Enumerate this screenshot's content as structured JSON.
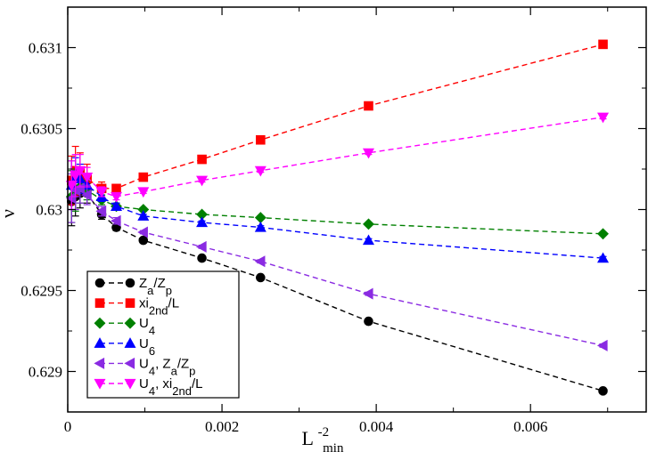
{
  "chart_data": {
    "type": "scatter",
    "xlabel": "L",
    "xlabel_sup": "-2",
    "xlabel_sub": "min",
    "ylabel": "ν",
    "xlim": [
      0,
      0.0075
    ],
    "ylim": [
      0.62875,
      0.63125
    ],
    "grid": false,
    "legend_position": "bottom-left",
    "x_ticks": [
      {
        "value": 0,
        "label": "0"
      },
      {
        "value": 0.002,
        "label": "0.002"
      },
      {
        "value": 0.004,
        "label": "0.004"
      },
      {
        "value": 0.006,
        "label": "0.006"
      }
    ],
    "y_ticks": [
      {
        "value": 0.629,
        "label": "0.629"
      },
      {
        "value": 0.6295,
        "label": "0.6295"
      },
      {
        "value": 0.63,
        "label": "0.63"
      },
      {
        "value": 0.6305,
        "label": "0.6305"
      },
      {
        "value": 0.631,
        "label": "0.631"
      }
    ],
    "series": [
      {
        "legend": [
          {
            "t": "Z"
          },
          {
            "t": "a",
            "sub": true
          },
          {
            "t": "/Z"
          },
          {
            "t": "p",
            "sub": true
          }
        ],
        "color": "#000000",
        "marker": "circle",
        "x": [
          5e-05,
          0.0001,
          0.00016,
          0.00025,
          0.00044,
          0.00063,
          0.00098,
          0.00174,
          0.0025,
          0.0039,
          0.00694
        ],
        "y": [
          0.63005,
          0.63008,
          0.6301,
          0.6301,
          0.62997,
          0.62989,
          0.62981,
          0.6297,
          0.62958,
          0.62931,
          0.62888
        ],
        "err": [
          0.00015,
          0.00012,
          9e-05,
          6e-05,
          3e-05,
          2e-05,
          1e-05,
          1e-05,
          1e-05,
          1e-05,
          1e-05
        ]
      },
      {
        "legend": [
          {
            "t": "xi"
          },
          {
            "t": "2nd",
            "sub": true
          },
          {
            "t": "/L"
          }
        ],
        "color": "#ff0000",
        "marker": "square",
        "x": [
          5e-05,
          0.0001,
          0.00016,
          0.00025,
          0.00044,
          0.00063,
          0.00098,
          0.00174,
          0.0025,
          0.0039,
          0.00694
        ],
        "y": [
          0.63018,
          0.63024,
          0.63023,
          0.63019,
          0.63013,
          0.63013,
          0.6302,
          0.63031,
          0.63043,
          0.63064,
          0.63102
        ],
        "err": [
          0.00015,
          0.00015,
          0.00012,
          9e-05,
          4e-05,
          2e-05,
          1e-05,
          1e-05,
          1e-05,
          1e-05,
          1e-05
        ]
      },
      {
        "legend": [
          {
            "t": "U"
          },
          {
            "t": "4",
            "sub": true
          }
        ],
        "color": "#008000",
        "marker": "diamond",
        "x": [
          5e-05,
          0.0001,
          0.00016,
          0.00025,
          0.00044,
          0.00063,
          0.00098,
          0.00174,
          0.0025,
          0.0039,
          0.00694
        ],
        "y": [
          0.63008,
          0.63012,
          0.63014,
          0.63012,
          0.63006,
          0.63002,
          0.63,
          0.62997,
          0.62995,
          0.62991,
          0.62985
        ],
        "err": [
          0.00016,
          0.00013,
          0.0001,
          6e-05,
          3e-05,
          2e-05,
          1e-05,
          1e-05,
          1e-05,
          1e-05,
          1e-05
        ]
      },
      {
        "legend": [
          {
            "t": "U"
          },
          {
            "t": "6",
            "sub": true
          }
        ],
        "color": "#0000ff",
        "marker": "triangle-up",
        "x": [
          5e-05,
          0.0001,
          0.00016,
          0.00025,
          0.00044,
          0.00063,
          0.00098,
          0.00174,
          0.0025,
          0.0039,
          0.00694
        ],
        "y": [
          0.63015,
          0.6302,
          0.63019,
          0.63015,
          0.63008,
          0.63002,
          0.62996,
          0.62992,
          0.62989,
          0.62981,
          0.6297
        ],
        "err": [
          0.00015,
          0.00012,
          9e-05,
          6e-05,
          3e-05,
          2e-05,
          1e-05,
          1e-05,
          1e-05,
          1e-05,
          1e-05
        ]
      },
      {
        "legend": [
          {
            "t": "U"
          },
          {
            "t": "4",
            "sub": true
          },
          {
            "t": ", Z"
          },
          {
            "t": "a",
            "sub": true
          },
          {
            "t": "/Z"
          },
          {
            "t": "p",
            "sub": true
          }
        ],
        "color": "#8a2be2",
        "marker": "triangle-left",
        "x": [
          5e-05,
          0.0001,
          0.00016,
          0.00025,
          0.00044,
          0.00063,
          0.00098,
          0.00174,
          0.0025,
          0.0039,
          0.00694
        ],
        "y": [
          0.63007,
          0.63012,
          0.63013,
          0.63009,
          0.62999,
          0.62993,
          0.62986,
          0.62977,
          0.62968,
          0.62948,
          0.62916
        ],
        "err": [
          0.00015,
          0.00012,
          9e-05,
          6e-05,
          3e-05,
          2e-05,
          1e-05,
          1e-05,
          1e-05,
          1e-05,
          1e-05
        ]
      },
      {
        "legend": [
          {
            "t": "U"
          },
          {
            "t": "4",
            "sub": true
          },
          {
            "t": ", xi"
          },
          {
            "t": "2nd",
            "sub": true
          },
          {
            "t": "/L"
          }
        ],
        "color": "#ff00ff",
        "marker": "triangle-down",
        "x": [
          5e-05,
          0.0001,
          0.00016,
          0.00025,
          0.00044,
          0.00063,
          0.00098,
          0.00174,
          0.0025,
          0.0039,
          0.00694
        ],
        "y": [
          0.63015,
          0.63021,
          0.63024,
          0.6302,
          0.63011,
          0.63008,
          0.63011,
          0.63018,
          0.63024,
          0.63035,
          0.63057
        ],
        "err": [
          0.00015,
          0.00013,
          0.0001,
          6e-05,
          3e-05,
          2e-05,
          1e-05,
          1e-05,
          1e-05,
          1e-05,
          1e-05
        ]
      }
    ]
  }
}
